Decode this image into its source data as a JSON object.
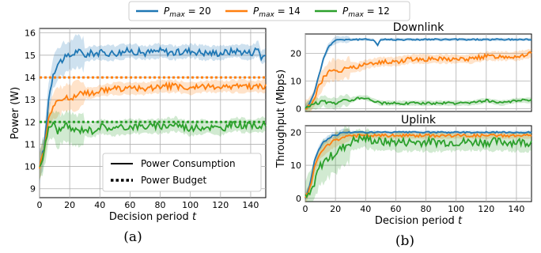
{
  "colors": {
    "p20": "#1f77b4",
    "p14": "#ff7f0e",
    "p12": "#2ca02c"
  },
  "legend": {
    "entries": [
      {
        "key": "p20",
        "label_main": "P",
        "label_sub": "max",
        "label_value": " = 20"
      },
      {
        "key": "p14",
        "label_main": "P",
        "label_sub": "max",
        "label_value": " = 14"
      },
      {
        "key": "p12",
        "label_main": "P",
        "label_sub": "max",
        "label_value": " = 12"
      }
    ]
  },
  "captions": {
    "a": "(a)",
    "b": "(b)"
  },
  "chart_data": [
    {
      "id": "a",
      "type": "line",
      "title": "",
      "xlabel": "Decision period ",
      "xlabel_var": "t",
      "ylabel": "Power (W)",
      "xlim": [
        0,
        150
      ],
      "ylim": [
        8.6,
        16.2
      ],
      "xticks": [
        0,
        20,
        40,
        60,
        80,
        100,
        120,
        140
      ],
      "yticks": [
        9,
        10,
        11,
        12,
        13,
        14,
        15,
        16
      ],
      "grid": true,
      "legend_position": "bottom-right",
      "legend": {
        "solid": "Power Consumption",
        "dotted": "Power Budget"
      },
      "budgets": [
        {
          "key": "p14",
          "value": 14
        },
        {
          "key": "p12",
          "value": 12
        }
      ],
      "series": [
        {
          "key": "p20",
          "x": [
            0,
            3,
            6,
            9,
            12,
            15,
            18,
            21,
            25,
            30,
            35,
            40,
            50,
            60,
            70,
            80,
            90,
            100,
            110,
            120,
            130,
            140,
            145,
            147,
            150
          ],
          "y": [
            10.0,
            10.8,
            13.0,
            14.2,
            14.6,
            14.8,
            14.9,
            15.0,
            15.2,
            15.0,
            15.1,
            15.1,
            15.1,
            15.2,
            15.1,
            15.2,
            15.1,
            15.2,
            15.1,
            15.1,
            15.2,
            15.1,
            15.3,
            14.9,
            15.0
          ],
          "band": 0.35
        },
        {
          "key": "p14",
          "x": [
            0,
            3,
            6,
            9,
            12,
            15,
            18,
            21,
            25,
            30,
            35,
            40,
            50,
            60,
            70,
            80,
            90,
            100,
            110,
            120,
            130,
            140,
            150
          ],
          "y": [
            10.0,
            10.8,
            12.2,
            12.7,
            12.9,
            13.0,
            13.1,
            13.1,
            13.2,
            13.3,
            13.3,
            13.4,
            13.5,
            13.5,
            13.5,
            13.6,
            13.6,
            13.5,
            13.6,
            13.6,
            13.6,
            13.6,
            13.6
          ],
          "band": 0.3
        },
        {
          "key": "p12",
          "x": [
            0,
            3,
            6,
            9,
            12,
            15,
            18,
            21,
            25,
            30,
            35,
            40,
            50,
            60,
            70,
            80,
            90,
            100,
            110,
            120,
            130,
            140,
            150
          ],
          "y": [
            10.0,
            10.6,
            11.8,
            11.9,
            11.6,
            11.7,
            11.8,
            11.7,
            11.6,
            11.7,
            11.6,
            11.8,
            11.7,
            11.8,
            11.8,
            11.8,
            11.9,
            11.7,
            11.8,
            11.7,
            11.9,
            11.8,
            11.9
          ],
          "band": 0.35
        }
      ]
    },
    {
      "id": "b-downlink",
      "type": "line",
      "title": "Downlink",
      "xlim": [
        0,
        150
      ],
      "ylim": [
        -1,
        27
      ],
      "yticks": [
        0,
        10,
        20
      ],
      "grid": true,
      "series": [
        {
          "key": "p20",
          "x": [
            0,
            3,
            6,
            9,
            12,
            15,
            18,
            21,
            24,
            27,
            30,
            35,
            40,
            45,
            48,
            50,
            60,
            80,
            100,
            120,
            140,
            150
          ],
          "y": [
            0,
            2,
            6,
            12,
            18,
            22,
            24,
            25,
            25,
            25,
            25,
            25,
            25,
            25,
            23,
            25,
            25,
            25,
            25,
            25,
            25,
            25
          ],
          "band": 0.6
        },
        {
          "key": "p14",
          "x": [
            0,
            3,
            6,
            9,
            12,
            15,
            18,
            21,
            25,
            30,
            35,
            40,
            50,
            60,
            70,
            80,
            90,
            100,
            110,
            120,
            130,
            140,
            150
          ],
          "y": [
            0,
            1,
            4,
            8,
            11,
            13,
            14,
            14,
            14,
            15,
            15,
            16,
            17,
            17,
            18,
            18,
            18,
            18,
            18,
            19,
            19,
            19,
            20
          ],
          "band": 1.8
        },
        {
          "key": "p12",
          "x": [
            0,
            3,
            6,
            9,
            12,
            15,
            18,
            21,
            25,
            30,
            35,
            40,
            45,
            50,
            60,
            70,
            80,
            90,
            100,
            110,
            120,
            130,
            140,
            150
          ],
          "y": [
            0,
            1,
            2,
            2,
            3,
            2,
            2,
            2,
            3,
            3,
            4,
            4,
            3,
            2,
            2,
            2,
            2,
            2,
            2,
            2,
            3,
            2,
            3,
            3
          ],
          "band": 1.0
        }
      ]
    },
    {
      "id": "b-uplink",
      "type": "line",
      "title": "Uplink",
      "xlabel": "Decision period ",
      "xlabel_var": "t",
      "ylabel": "Throughput (Mbps)",
      "xlim": [
        0,
        150
      ],
      "ylim": [
        -1,
        22
      ],
      "xticks": [
        0,
        20,
        40,
        60,
        80,
        100,
        120,
        140
      ],
      "yticks": [
        0,
        10,
        20
      ],
      "grid": true,
      "series": [
        {
          "key": "p20",
          "x": [
            0,
            3,
            6,
            9,
            12,
            15,
            18,
            21,
            24,
            27,
            30,
            40,
            60,
            80,
            100,
            120,
            140,
            150
          ],
          "y": [
            0,
            4,
            11,
            15,
            17,
            18,
            19,
            19,
            20,
            20,
            20,
            20,
            20,
            20,
            20,
            20,
            20,
            20
          ],
          "band": 0.5
        },
        {
          "key": "p14",
          "x": [
            0,
            3,
            6,
            9,
            12,
            15,
            18,
            21,
            24,
            27,
            30,
            40,
            60,
            80,
            100,
            120,
            140,
            150
          ],
          "y": [
            0,
            3,
            9,
            13,
            15,
            16,
            17,
            18,
            18,
            19,
            19,
            19,
            19,
            19,
            19,
            19,
            19,
            19
          ],
          "band": 1.0
        },
        {
          "key": "p12",
          "x": [
            0,
            3,
            6,
            9,
            12,
            15,
            18,
            21,
            24,
            27,
            30,
            35,
            40,
            50,
            60,
            80,
            100,
            120,
            140,
            150
          ],
          "y": [
            0,
            1,
            5,
            9,
            11,
            12,
            13,
            14,
            15,
            16,
            17,
            18,
            18,
            17,
            17,
            17,
            17,
            17,
            17,
            17
          ],
          "band": 3.0
        }
      ]
    }
  ]
}
